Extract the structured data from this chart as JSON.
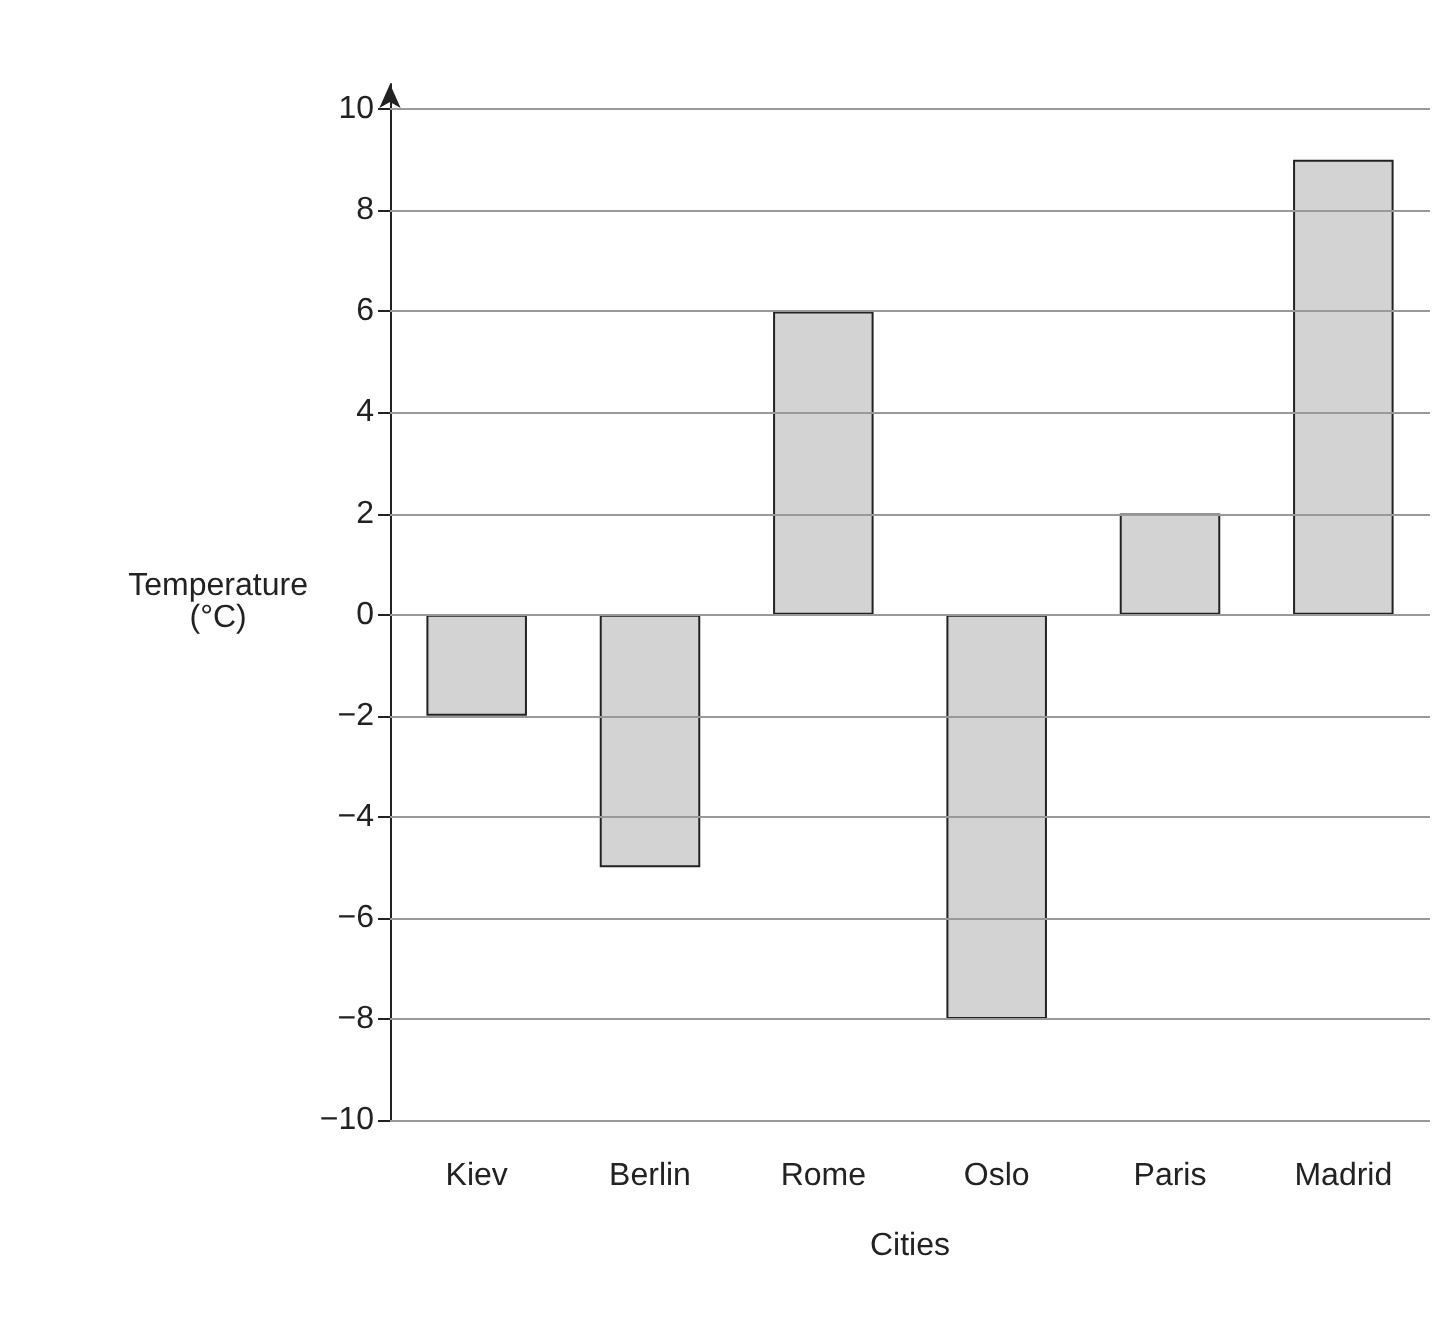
{
  "chart_data": {
    "type": "bar",
    "xlabel": "Cities",
    "ylabel": "Temperature\n(°C)",
    "categories": [
      "Kiev",
      "Berlin",
      "Rome",
      "Oslo",
      "Paris",
      "Madrid"
    ],
    "values": [
      -2,
      -5,
      6,
      -8,
      2,
      9
    ],
    "color": "#d3d3d3",
    "ylim": [
      -10,
      10.5
    ],
    "yticks": [
      -10,
      -8,
      -6,
      -4,
      -2,
      0,
      2,
      4,
      6,
      8,
      10
    ],
    "grid": "y"
  }
}
